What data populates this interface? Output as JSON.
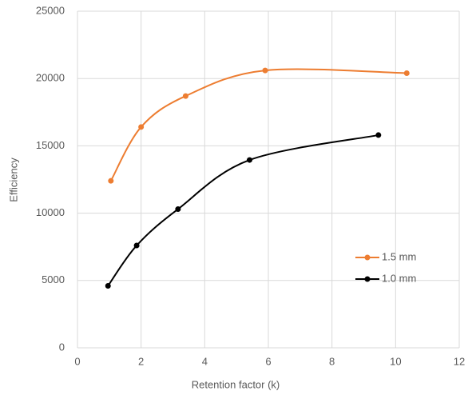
{
  "chart_data": {
    "type": "line",
    "smooth": true,
    "x_label": "Retention factor (k)",
    "y_label": "Efficiency",
    "xlim": [
      0,
      12
    ],
    "xticks": [
      0,
      2,
      4,
      6,
      8,
      10,
      12
    ],
    "ylim": [
      0,
      25000
    ],
    "yticks": [
      0,
      5000,
      10000,
      15000,
      20000,
      25000
    ],
    "grid": true,
    "legend": "right",
    "series": [
      {
        "name": "1.5 mm",
        "color": "#ed7d31",
        "x": [
          1.05,
          2.0,
          3.4,
          5.9,
          10.35
        ],
        "values": [
          12400,
          16400,
          18700,
          20600,
          20400
        ]
      },
      {
        "name": "1.0 mm",
        "color": "#000000",
        "x": [
          0.96,
          1.86,
          3.16,
          5.41,
          9.46
        ],
        "values": [
          4600,
          7600,
          10300,
          13950,
          15800
        ]
      }
    ]
  }
}
